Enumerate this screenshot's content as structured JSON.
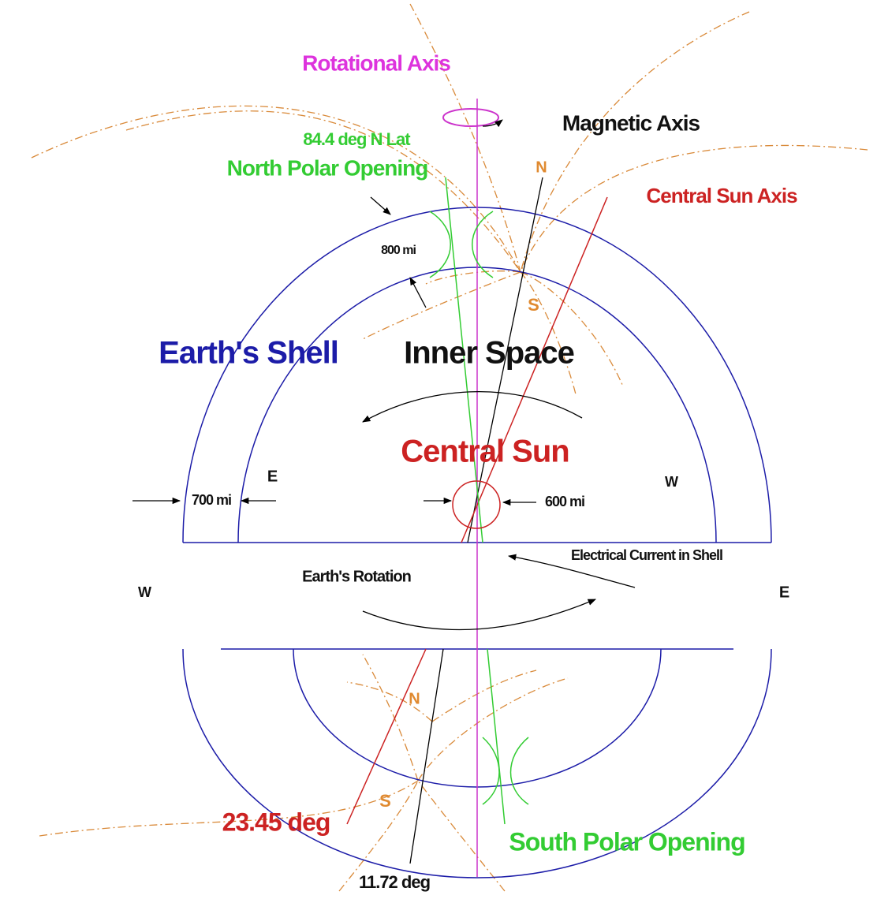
{
  "labels": [
    "Rotational Axis",
    "Magnetic Axis",
    "84.4 deg N Lat",
    "North Polar Opening",
    "Central Sun Axis",
    "N",
    "800 mi",
    "S",
    "Earth's Shell",
    "Inner Space",
    "Central Sun",
    "E",
    "W",
    "700 mi",
    "600 mi",
    "Electrical Current in Shell",
    "Earth's Rotation",
    "W",
    "E",
    "N",
    "S",
    "23.45 deg",
    "South Polar Opening",
    "11.72 deg"
  ]
}
